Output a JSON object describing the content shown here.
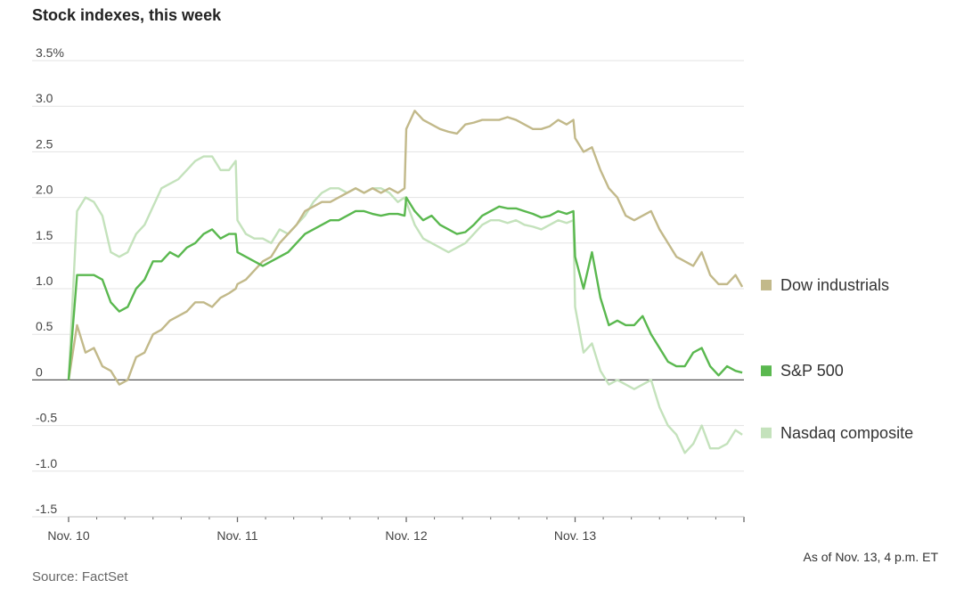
{
  "title": "Stock indexes, this week",
  "note": "As of Nov. 13, 4 p.m. ET",
  "source": "Source: FactSet",
  "chart_data": {
    "type": "line",
    "title": "Stock indexes, this week",
    "ylabel": "",
    "xlabel": "",
    "ylim": [
      -1.5,
      3.5
    ],
    "yticks": [
      {
        "value": 3.5,
        "label": "3.5%"
      },
      {
        "value": 3.0,
        "label": "3.0"
      },
      {
        "value": 2.5,
        "label": "2.5"
      },
      {
        "value": 2.0,
        "label": "2.0"
      },
      {
        "value": 1.5,
        "label": "1.5"
      },
      {
        "value": 1.0,
        "label": "1.0"
      },
      {
        "value": 0.5,
        "label": "0.5"
      },
      {
        "value": 0,
        "label": "0"
      },
      {
        "value": -0.5,
        "label": "-0.5"
      },
      {
        "value": -1.0,
        "label": "-1.0"
      },
      {
        "value": -1.5,
        "label": "-1.5"
      }
    ],
    "xlim": [
      0,
      4
    ],
    "xticks": [
      {
        "value": 0,
        "label": "Nov. 10"
      },
      {
        "value": 1,
        "label": "Nov. 11"
      },
      {
        "value": 2,
        "label": "Nov. 12"
      },
      {
        "value": 3,
        "label": "Nov. 13"
      }
    ],
    "minor_xticks_per_day": 6,
    "x": [
      0,
      0.05,
      0.1,
      0.15,
      0.2,
      0.25,
      0.3,
      0.35,
      0.4,
      0.45,
      0.5,
      0.55,
      0.6,
      0.65,
      0.7,
      0.75,
      0.8,
      0.85,
      0.9,
      0.95,
      0.99,
      1.0,
      1.05,
      1.1,
      1.15,
      1.2,
      1.25,
      1.3,
      1.35,
      1.4,
      1.45,
      1.5,
      1.55,
      1.6,
      1.65,
      1.7,
      1.75,
      1.8,
      1.85,
      1.9,
      1.95,
      1.99,
      2.0,
      2.05,
      2.1,
      2.15,
      2.2,
      2.25,
      2.3,
      2.35,
      2.4,
      2.45,
      2.5,
      2.55,
      2.6,
      2.65,
      2.7,
      2.75,
      2.8,
      2.85,
      2.9,
      2.95,
      2.99,
      3.0,
      3.05,
      3.1,
      3.15,
      3.2,
      3.25,
      3.3,
      3.35,
      3.4,
      3.45,
      3.5,
      3.55,
      3.6,
      3.65,
      3.7,
      3.75,
      3.8,
      3.85,
      3.9,
      3.95,
      3.99
    ],
    "series": [
      {
        "name": "Dow industrials",
        "color": "#c2b98a",
        "values": [
          0.0,
          0.6,
          0.3,
          0.35,
          0.15,
          0.1,
          -0.05,
          0.0,
          0.25,
          0.3,
          0.5,
          0.55,
          0.65,
          0.7,
          0.75,
          0.85,
          0.85,
          0.8,
          0.9,
          0.95,
          1.0,
          1.05,
          1.1,
          1.2,
          1.3,
          1.35,
          1.5,
          1.6,
          1.7,
          1.85,
          1.9,
          1.95,
          1.95,
          2.0,
          2.05,
          2.1,
          2.05,
          2.1,
          2.05,
          2.1,
          2.05,
          2.1,
          2.75,
          2.95,
          2.85,
          2.8,
          2.75,
          2.72,
          2.7,
          2.8,
          2.82,
          2.85,
          2.85,
          2.85,
          2.88,
          2.85,
          2.8,
          2.75,
          2.75,
          2.78,
          2.85,
          2.8,
          2.85,
          2.65,
          2.5,
          2.55,
          2.3,
          2.1,
          2.0,
          1.8,
          1.75,
          1.8,
          1.85,
          1.65,
          1.5,
          1.35,
          1.3,
          1.25,
          1.4,
          1.15,
          1.05,
          1.05,
          1.15,
          1.02
        ]
      },
      {
        "name": "S&P 500",
        "color": "#5ab84f",
        "values": [
          0.0,
          1.15,
          1.15,
          1.15,
          1.1,
          0.85,
          0.75,
          0.8,
          1.0,
          1.1,
          1.3,
          1.3,
          1.4,
          1.35,
          1.45,
          1.5,
          1.6,
          1.65,
          1.55,
          1.6,
          1.6,
          1.4,
          1.35,
          1.3,
          1.25,
          1.3,
          1.35,
          1.4,
          1.5,
          1.6,
          1.65,
          1.7,
          1.75,
          1.75,
          1.8,
          1.85,
          1.85,
          1.82,
          1.8,
          1.82,
          1.82,
          1.8,
          2.0,
          1.85,
          1.75,
          1.8,
          1.7,
          1.65,
          1.6,
          1.62,
          1.7,
          1.8,
          1.85,
          1.9,
          1.88,
          1.88,
          1.85,
          1.82,
          1.78,
          1.8,
          1.85,
          1.82,
          1.85,
          1.35,
          1.0,
          1.4,
          0.9,
          0.6,
          0.65,
          0.6,
          0.6,
          0.7,
          0.5,
          0.35,
          0.2,
          0.15,
          0.15,
          0.3,
          0.35,
          0.15,
          0.05,
          0.15,
          0.1,
          0.08
        ]
      },
      {
        "name": "Nasdaq composite",
        "color": "#c4e2bc",
        "values": [
          0.0,
          1.85,
          2.0,
          1.95,
          1.8,
          1.4,
          1.35,
          1.4,
          1.6,
          1.7,
          1.9,
          2.1,
          2.15,
          2.2,
          2.3,
          2.4,
          2.45,
          2.45,
          2.3,
          2.3,
          2.4,
          1.75,
          1.6,
          1.55,
          1.55,
          1.5,
          1.65,
          1.6,
          1.7,
          1.8,
          1.95,
          2.05,
          2.1,
          2.1,
          2.05,
          2.1,
          2.05,
          2.1,
          2.1,
          2.05,
          1.95,
          2.0,
          1.95,
          1.7,
          1.55,
          1.5,
          1.45,
          1.4,
          1.45,
          1.5,
          1.6,
          1.7,
          1.75,
          1.75,
          1.72,
          1.75,
          1.7,
          1.68,
          1.65,
          1.7,
          1.75,
          1.72,
          1.75,
          0.8,
          0.3,
          0.4,
          0.1,
          -0.05,
          0.0,
          -0.05,
          -0.1,
          -0.05,
          0.0,
          -0.3,
          -0.5,
          -0.6,
          -0.8,
          -0.7,
          -0.5,
          -0.75,
          -0.75,
          -0.7,
          -0.55,
          -0.6
        ]
      }
    ]
  },
  "legend": [
    {
      "label": "Dow industrials",
      "color": "#c2b98a"
    },
    {
      "label": "S&P 500",
      "color": "#5ab84f"
    },
    {
      "label": "Nasdaq composite",
      "color": "#c4e2bc"
    }
  ]
}
